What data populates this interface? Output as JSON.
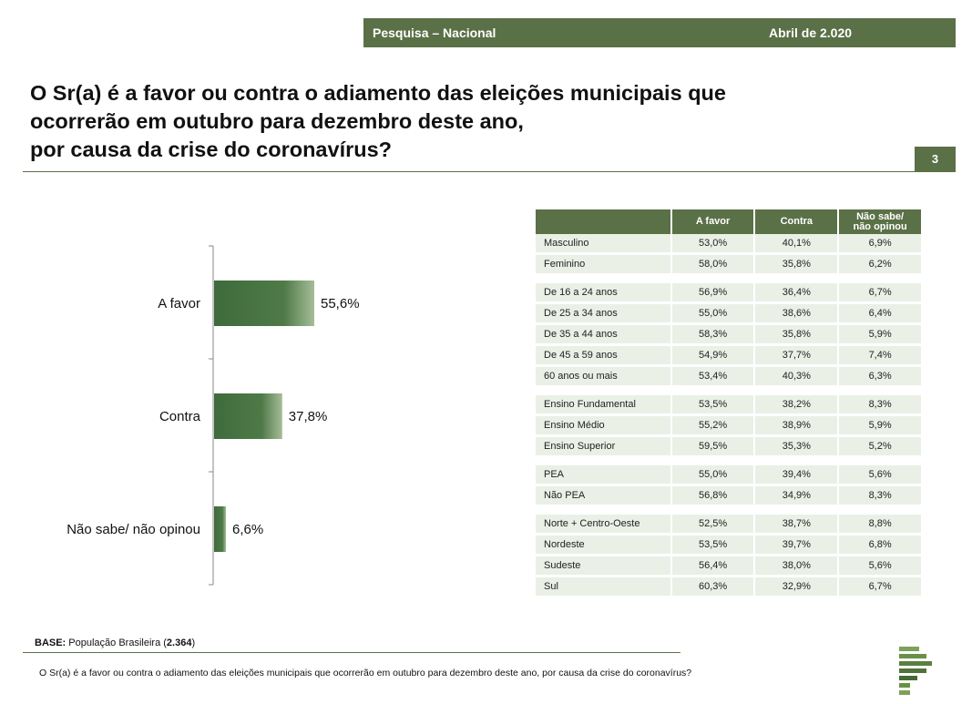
{
  "header": {
    "left": "Pesquisa – Nacional",
    "right": "Abril de 2.020"
  },
  "title": {
    "lines": [
      "O Sr(a) é a favor ou contra o adiamento das eleições municipais que",
      "ocorrerão em outubro para dezembro deste ano,",
      "por causa da crise do coronavírus?"
    ]
  },
  "page_number": "3",
  "colors": {
    "accent": "#5a7047",
    "bar_dark": "#3f6a3b",
    "row_bg": "#eaf0e6"
  },
  "chart_data": {
    "type": "bar",
    "orientation": "horizontal",
    "categories": [
      "A favor",
      "Contra",
      "Não sabe/ não opinou"
    ],
    "values": [
      55.6,
      37.8,
      6.6
    ],
    "value_labels": [
      "55,6%",
      "37,8%",
      "6,6%"
    ],
    "xlim": [
      0,
      100
    ],
    "grid": false,
    "legend": "none"
  },
  "table": {
    "headers": [
      "",
      "A favor",
      "Contra",
      "Não sabe/\nnão opinou"
    ],
    "groups": [
      {
        "rows": [
          [
            "Masculino",
            "53,0%",
            "40,1%",
            "6,9%"
          ],
          [
            "Feminino",
            "58,0%",
            "35,8%",
            "6,2%"
          ]
        ]
      },
      {
        "rows": [
          [
            "De 16 a 24 anos",
            "56,9%",
            "36,4%",
            "6,7%"
          ],
          [
            "De 25 a 34 anos",
            "55,0%",
            "38,6%",
            "6,4%"
          ],
          [
            "De 35 a 44 anos",
            "58,3%",
            "35,8%",
            "5,9%"
          ],
          [
            "De 45 a 59 anos",
            "54,9%",
            "37,7%",
            "7,4%"
          ],
          [
            "60 anos ou mais",
            "53,4%",
            "40,3%",
            "6,3%"
          ]
        ]
      },
      {
        "rows": [
          [
            "Ensino Fundamental",
            "53,5%",
            "38,2%",
            "8,3%"
          ],
          [
            "Ensino Médio",
            "55,2%",
            "38,9%",
            "5,9%"
          ],
          [
            "Ensino Superior",
            "59,5%",
            "35,3%",
            "5,2%"
          ]
        ]
      },
      {
        "rows": [
          [
            "PEA",
            "55,0%",
            "39,4%",
            "5,6%"
          ],
          [
            "Não PEA",
            "56,8%",
            "34,9%",
            "8,3%"
          ]
        ]
      },
      {
        "rows": [
          [
            "Norte + Centro-Oeste",
            "52,5%",
            "38,7%",
            "8,8%"
          ],
          [
            "Nordeste",
            "53,5%",
            "39,7%",
            "6,8%"
          ],
          [
            "Sudeste",
            "56,4%",
            "38,0%",
            "5,6%"
          ],
          [
            "Sul",
            "60,3%",
            "32,9%",
            "6,7%"
          ]
        ]
      }
    ]
  },
  "base": {
    "label": "BASE:",
    "text": "População Brasileira (",
    "count": "2.364",
    "close": ")"
  },
  "footnote": "O Sr(a) é a favor ou contra o adiamento das eleições municipais que ocorrerão em outubro para dezembro deste ano, por causa da crise do coronavírus?",
  "logo_icon": "p-logo-icon"
}
